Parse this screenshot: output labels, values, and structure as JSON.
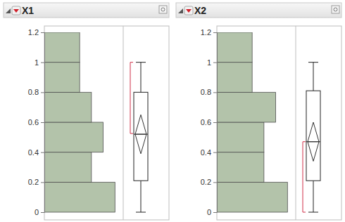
{
  "chart_data": [
    {
      "type": "histogram",
      "title": "X1",
      "orientation": "horizontal",
      "tick_labels": "y",
      "bins": [
        0,
        0.2,
        0.4,
        0.6,
        0.8,
        1.0,
        1.2
      ],
      "counts": [
        6,
        4,
        5,
        4,
        3,
        3
      ],
      "color": "#b3c3aa",
      "xlim": [
        0,
        6.7
      ],
      "ylim": [
        0,
        1.2
      ],
      "yticks": [
        0,
        0.2,
        0.4,
        0.6,
        0.8,
        1,
        1.2
      ],
      "box": {
        "min": 0,
        "q1": 0.21,
        "median": 0.52,
        "q3": 0.8,
        "max": 1.0
      },
      "mean": 0.52,
      "mean_ci": [
        0.39,
        0.65
      ],
      "shortest_half": [
        0.525,
        1.0
      ]
    },
    {
      "type": "histogram",
      "title": "X2",
      "orientation": "horizontal",
      "tick_labels": "y",
      "bins": [
        0,
        0.2,
        0.4,
        0.6,
        0.8,
        1.0,
        1.2
      ],
      "counts": [
        6,
        4,
        4,
        5,
        3,
        3
      ],
      "color": "#b3c3aa",
      "xlim": [
        0,
        6.7
      ],
      "ylim": [
        0,
        1.2
      ],
      "yticks": [
        0,
        0.2,
        0.4,
        0.6,
        0.8,
        1,
        1.2
      ],
      "box": {
        "min": 0,
        "q1": 0.21,
        "median": 0.47,
        "q3": 0.81,
        "max": 1.0
      },
      "mean": 0.47,
      "mean_ci": [
        0.34,
        0.6
      ],
      "shortest_half": [
        0,
        0.47
      ]
    }
  ]
}
